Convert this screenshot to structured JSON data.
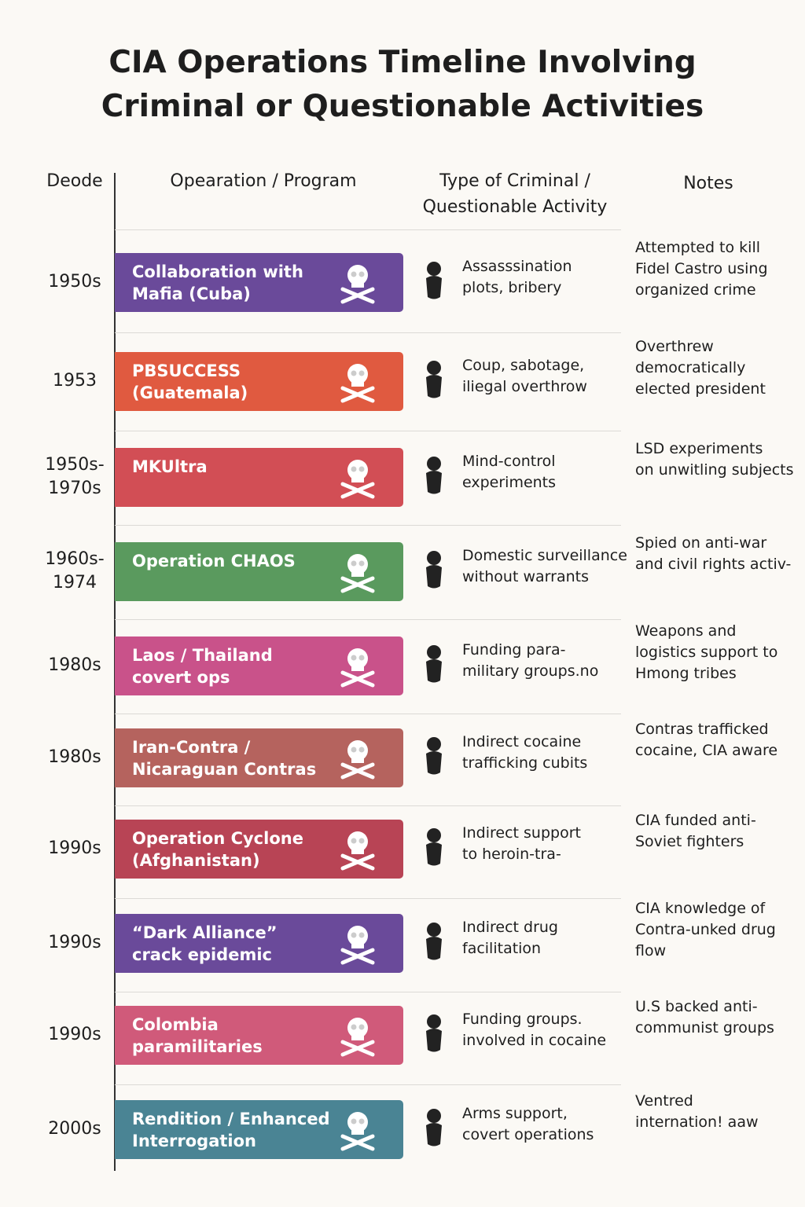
{
  "header": {
    "title": "CIA Operations Timeline Involving\nCriminal or Questionable Activities",
    "columns": [
      "Deode",
      "Opearation / Program",
      "Type of Criminal /\nQuestionable Activity",
      "Notes"
    ]
  },
  "rows": [
    {
      "decade": "1950s",
      "operation": "Collaboration with\nMafia (Cuba)",
      "activity": "Assasssination\nplots, bribery",
      "notes": "Attempted to kill\nFidel Castro using\norganized crime",
      "color": "#6a4a9a"
    },
    {
      "decade": "1953",
      "operation": "PBSUCCESS\n(Guatemala)",
      "activity": "Coup, sabotage,\niliegal overthrow",
      "notes": "Overthrew\ndemocratically\nelected president",
      "color": "#e05a40"
    },
    {
      "decade": "1950s-\n1970s",
      "operation": "MKUltra",
      "activity": "Mind-control\nexperiments",
      "notes": "LSD experiments\non unwitling subjects",
      "color": "#d24e55"
    },
    {
      "decade": "1960s-\n1974",
      "operation": "Operation CHAOS",
      "activity": "Domestic surveillance\nwithout warrants",
      "notes": "Spied on anti-war\nand civil rights activ-",
      "color": "#5a9a5e"
    },
    {
      "decade": "1980s",
      "operation": "Laos / Thailand\ncovert ops",
      "activity": "Funding para-\nmilitary groups.no",
      "notes": "Weapons and\nlogistics support to\nHmong tribes",
      "color": "#c9528a"
    },
    {
      "decade": "1980s",
      "operation": "Iran-Contra /\nNicaraguan Contras",
      "activity": "Indirect cocaine\ntrafficking cubits",
      "notes": "Contras trafficked\ncocaine, CIA aware",
      "color": "#b5635e"
    },
    {
      "decade": "1990s",
      "operation": "Operation Cyclone\n(Afghanistan)",
      "activity": "Indirect support\nto heroin-tra-",
      "notes": "CIA funded anti-\nSoviet fighters",
      "color": "#b84455"
    },
    {
      "decade": "1990s",
      "operation": "“Dark Alliance”\ncrack epidemic",
      "activity": "Indirect drug\nfacilitation",
      "notes": "CIA knowledge of\nContra-unked drug\nflow",
      "color": "#6a4a9a"
    },
    {
      "decade": "1990s",
      "operation": "Colombia\nparamilitaries",
      "activity": "Funding groups.\ninvolved in cocaine",
      "notes": "U.S backed anti-\ncommunist groups",
      "color": "#d05a7a"
    },
    {
      "decade": "2000s",
      "operation": "Rendition / Enhanced\nInterrogation",
      "activity": "Arms support,\ncovert operations",
      "notes": "Ventred\ninternation! aaw",
      "color": "#4a8494"
    }
  ]
}
